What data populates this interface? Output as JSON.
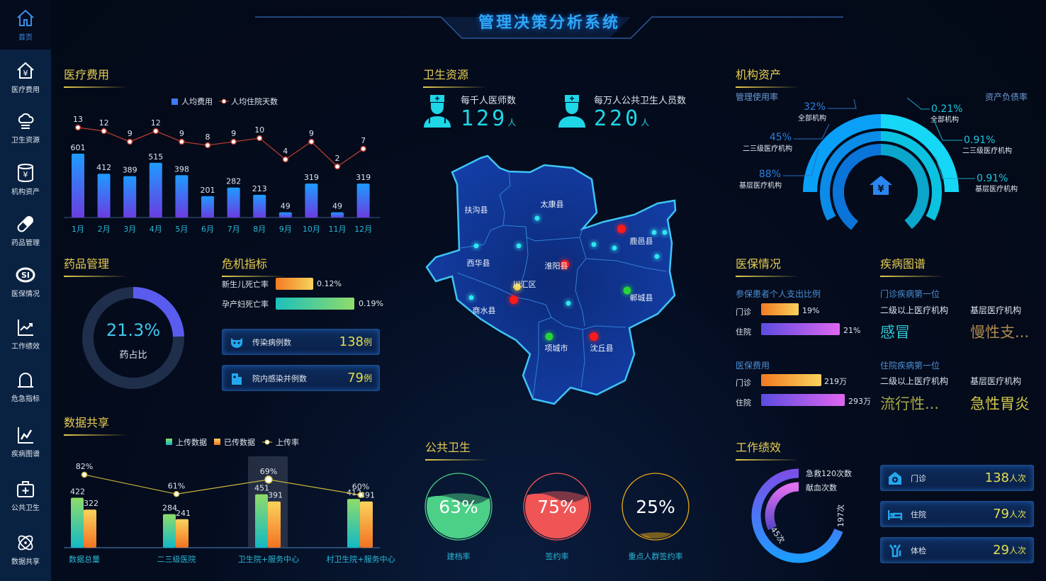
{
  "app_title": "管理决策分析系统",
  "sidebar": {
    "home": {
      "label": "首页",
      "icon": "home-icon"
    },
    "items": [
      {
        "label": "医疗费用",
        "icon": "house-yuan-icon"
      },
      {
        "label": "卫生资源",
        "icon": "cloud-icon"
      },
      {
        "label": "机构资产",
        "icon": "coin-stack-icon"
      },
      {
        "label": "药品管理",
        "icon": "pill-icon"
      },
      {
        "label": "医保情况",
        "icon": "si-logo-icon"
      },
      {
        "label": "工作绩效",
        "icon": "trend-chart-icon"
      },
      {
        "label": "危急指标",
        "icon": "alarm-bell-icon"
      },
      {
        "label": "疾病图谱",
        "icon": "line-chart-icon"
      },
      {
        "label": "公共卫生",
        "icon": "medical-kit-icon"
      },
      {
        "label": "数据共享",
        "icon": "atom-icon"
      }
    ]
  },
  "medical_cost": {
    "title": "医疗费用"
  },
  "drug": {
    "title": "药品管理",
    "value": "21.3%",
    "label": "药占比",
    "fraction": 0.213
  },
  "crisis": {
    "title": "危机指标",
    "rates": [
      {
        "label": "新生儿死亡率",
        "value": "0.12%"
      },
      {
        "label": "孕产妇死亡率",
        "value": "0.19%"
      }
    ],
    "cards": [
      {
        "label": "传染病例数",
        "value": "138",
        "unit": "例",
        "icon": "virus-mask-icon"
      },
      {
        "label": "院内感染并例数",
        "value": "79",
        "unit": "例",
        "icon": "hospital-icon"
      }
    ]
  },
  "data_share": {
    "title": "数据共享"
  },
  "health_resources": {
    "title": "卫生资源",
    "stats": [
      {
        "label": "每千人医师数",
        "value": "129",
        "unit": "人",
        "icon": "doctor-icon"
      },
      {
        "label": "每万人公共卫生人员数",
        "value": "220",
        "unit": "人",
        "icon": "nurse-icon"
      }
    ]
  },
  "map": {
    "regions": [
      "扶沟县",
      "太康县",
      "鹿邑县",
      "西华县",
      "淮阳县",
      "川汇区",
      "郸城县",
      "商水县",
      "项城市",
      "沈丘县"
    ]
  },
  "public_health": {
    "title": "公共卫生",
    "gauges": [
      {
        "label": "建档率",
        "value": "63%",
        "fraction": 0.63,
        "color": "#4ccf86"
      },
      {
        "label": "签约率",
        "value": "75%",
        "fraction": 0.75,
        "color": "#f05556"
      },
      {
        "label": "重点人群签约率",
        "value": "25%",
        "fraction": 0.25,
        "color": "#e8a812"
      }
    ]
  },
  "assets": {
    "title": "机构资产",
    "left_title": "管理使用率",
    "right_title": "资产负债率",
    "icon": "house-yuan-icon",
    "left": [
      {
        "value": "32%",
        "label": "全部机构"
      },
      {
        "value": "45%",
        "label": "二三级医疗机构"
      },
      {
        "value": "88%",
        "label": "基层医疗机构"
      }
    ],
    "right": [
      {
        "value": "0.21%",
        "label": "全部机构"
      },
      {
        "value": "0.91%",
        "label": "二三级医疗机构"
      },
      {
        "value": "0.91%",
        "label": "基层医疗机构"
      }
    ]
  },
  "insurance": {
    "title": "医保情况",
    "ratio": {
      "title": "参保患者个人支出比例",
      "rows": [
        {
          "label": "门诊",
          "value": "19%"
        },
        {
          "label": "住院",
          "value": "21%"
        }
      ]
    },
    "cost": {
      "title": "医保费用",
      "rows": [
        {
          "label": "门诊",
          "value": "219万"
        },
        {
          "label": "住院",
          "value": "293万"
        }
      ]
    }
  },
  "disease": {
    "title": "疾病图谱",
    "outpatient": {
      "title": "门诊疾病第一位",
      "col1": "二级以上医疗机构",
      "col2": "基层医疗机构",
      "v1": "感冒",
      "v2": "慢性支..."
    },
    "inpatient": {
      "title": "住院疾病第一位",
      "col1": "二级以上医疗机构",
      "col2": "基层医疗机构",
      "v1": "流行性...",
      "v2": "急性胃炎"
    }
  },
  "performance": {
    "title": "工作绩效",
    "ring": {
      "legend": [
        "急救120次数",
        "献血次数"
      ],
      "outer_label": "197次",
      "inner_label": "45次"
    },
    "cards": [
      {
        "label": "门诊",
        "value": "138",
        "unit": "人次",
        "icon": "clinic-icon"
      },
      {
        "label": "住院",
        "value": "79",
        "unit": "人次",
        "icon": "bed-icon"
      },
      {
        "label": "体检",
        "value": "29",
        "unit": "人次",
        "icon": "checkup-icon"
      }
    ]
  },
  "chart_data": [
    {
      "type": "bar",
      "legend": [
        "人均费用",
        "人均住院天数"
      ],
      "categories": [
        "1月",
        "2月",
        "3月",
        "4月",
        "5月",
        "6月",
        "7月",
        "8月",
        "9月",
        "10月",
        "11月",
        "12月"
      ],
      "series": [
        {
          "name": "人均费用",
          "type": "bar",
          "values": [
            601,
            412,
            389,
            515,
            398,
            201,
            282,
            213,
            49,
            319,
            49,
            319
          ]
        },
        {
          "name": "人均住院天数",
          "type": "line",
          "values": [
            13,
            12,
            9,
            12,
            9,
            8,
            9,
            10,
            4,
            9,
            2,
            7
          ]
        }
      ]
    },
    {
      "type": "bar",
      "legend": [
        "上传数据",
        "已传数据",
        "上传率"
      ],
      "categories": [
        "数据总量",
        "二三级医院",
        "卫生院+服务中心",
        "村卫生院+服务中心"
      ],
      "highlighted": "卫生院+服务中心",
      "series": [
        {
          "name": "上传数据",
          "type": "bar",
          "values": [
            422,
            284,
            451,
            412
          ]
        },
        {
          "name": "已传数据",
          "type": "bar",
          "values": [
            322,
            241,
            391,
            391
          ]
        },
        {
          "name": "上传率",
          "type": "line",
          "values": [
            "82%",
            "61%",
            "69%",
            "60%"
          ]
        }
      ]
    }
  ]
}
